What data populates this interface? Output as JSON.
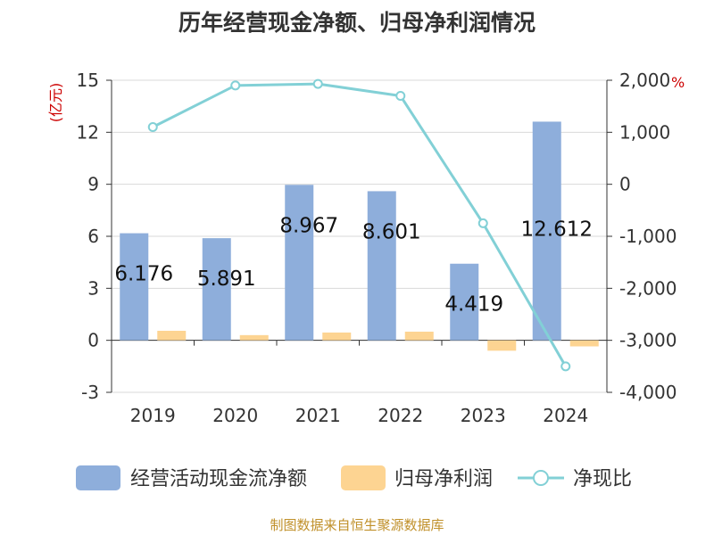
{
  "chart_data": {
    "type": "bar+line",
    "title": "历年经营现金净额、归母净利润情况",
    "categories": [
      "2019",
      "2020",
      "2021",
      "2022",
      "2023",
      "2024"
    ],
    "series": [
      {
        "name": "经营活动现金流净额",
        "type": "bar",
        "axis": "left",
        "color": "#8eaedb",
        "values": [
          6.176,
          5.891,
          8.967,
          8.601,
          4.419,
          12.612
        ],
        "labels": [
          "6.176",
          "5.891",
          "8.967",
          "8.601",
          "4.419",
          "12.612"
        ]
      },
      {
        "name": "归母净利润",
        "type": "bar",
        "axis": "left",
        "color": "#fdd492",
        "values": [
          0.55,
          0.3,
          0.45,
          0.5,
          -0.6,
          -0.35
        ]
      },
      {
        "name": "净现比",
        "type": "line",
        "axis": "right",
        "color": "#82d0d6",
        "values": [
          1100,
          1900,
          1930,
          1700,
          -750,
          -3500
        ]
      }
    ],
    "left_axis": {
      "unit": "(亿元)",
      "min": -3,
      "max": 15,
      "ticks": [
        "15",
        "12",
        "9",
        "6",
        "3",
        "0",
        "-3"
      ]
    },
    "right_axis": {
      "unit": "%",
      "min": -4000,
      "max": 2000,
      "ticks": [
        "2,000",
        "1,000",
        "0",
        "-1,000",
        "-2,000",
        "-3,000",
        "-4,000"
      ]
    },
    "grid": true,
    "legend_position": "bottom"
  },
  "source": "制图数据来自恒生聚源数据库"
}
